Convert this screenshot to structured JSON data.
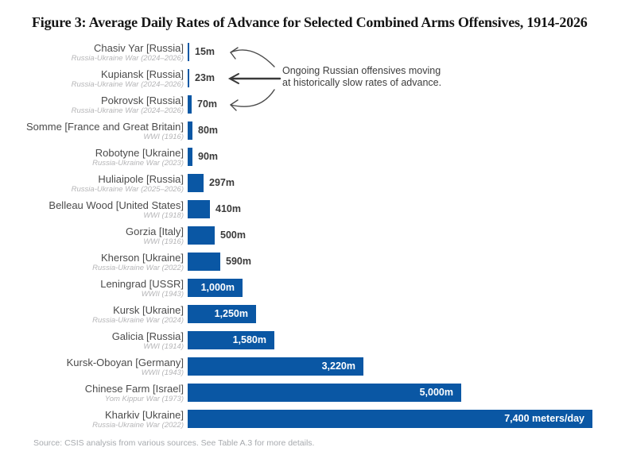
{
  "figure": {
    "title": "Figure 3: Average Daily Rates of Advance for Selected Combined Arms Offensives, 1914-2026",
    "source": "Source: CSIS analysis from various sources. See Table A.3 for more details."
  },
  "annotation": {
    "line1": "Ongoing Russian offensives moving",
    "line2": "at historically slow rates of advance."
  },
  "colors": {
    "bar_blue": "#0a57a4",
    "label_text": "#4b4b4b",
    "sublabel_text": "#b5b5b7",
    "value_outside_text": "#3a3a3a",
    "value_inside_text": "#ffffff",
    "annotation_text": "#3d3d3d",
    "source_text": "#a7aaae"
  },
  "chart_data": {
    "type": "bar",
    "orientation": "horizontal",
    "unit": "meters per day",
    "xlim": [
      0,
      7400
    ],
    "grid": false,
    "legend": "none",
    "title": "Figure 3: Average Daily Rates of Advance for Selected Combined Arms Offensives, 1914-2026",
    "bars": [
      {
        "name": "Chasiv Yar [Russia]",
        "war": "Russia-Ukraine War (2024–2026)",
        "value": 15,
        "label": "15m"
      },
      {
        "name": "Kupiansk [Russia]",
        "war": "Russia-Ukraine War (2024–2026)",
        "value": 23,
        "label": "23m"
      },
      {
        "name": "Pokrovsk [Russia]",
        "war": "Russia-Ukraine War (2024–2026)",
        "value": 70,
        "label": "70m"
      },
      {
        "name": "Somme [France and Great Britain]",
        "war": "WWI (1916)",
        "value": 80,
        "label": "80m"
      },
      {
        "name": "Robotyne [Ukraine]",
        "war": "Russia-Ukraine War (2023)",
        "value": 90,
        "label": "90m"
      },
      {
        "name": "Huliaipole [Russia]",
        "war": "Russia-Ukraine War (2025–2026)",
        "value": 297,
        "label": "297m"
      },
      {
        "name": "Belleau Wood [United States]",
        "war": "WWI (1918)",
        "value": 410,
        "label": "410m"
      },
      {
        "name": "Gorzia [Italy]",
        "war": "WWI (1916)",
        "value": 500,
        "label": "500m"
      },
      {
        "name": "Kherson [Ukraine]",
        "war": "Russia-Ukraine War (2022)",
        "value": 590,
        "label": "590m"
      },
      {
        "name": "Leningrad [USSR]",
        "war": "WWII (1943)",
        "value": 1000,
        "label": "1,000m"
      },
      {
        "name": "Kursk [Ukraine]",
        "war": "Russia-Ukraine War (2024)",
        "value": 1250,
        "label": "1,250m"
      },
      {
        "name": "Galicia [Russia]",
        "war": "WWI (1914)",
        "value": 1580,
        "label": "1,580m"
      },
      {
        "name": "Kursk-Oboyan [Germany]",
        "war": "WWII (1943)",
        "value": 3220,
        "label": "3,220m"
      },
      {
        "name": "Chinese Farm [Israel]",
        "war": "Yom Kippur War (1973)",
        "value": 5000,
        "label": "5,000m"
      },
      {
        "name": "Kharkiv [Ukraine]",
        "war": "Russia-Ukraine War (2022)",
        "value": 7400,
        "label": "7,400 meters/day"
      }
    ]
  }
}
